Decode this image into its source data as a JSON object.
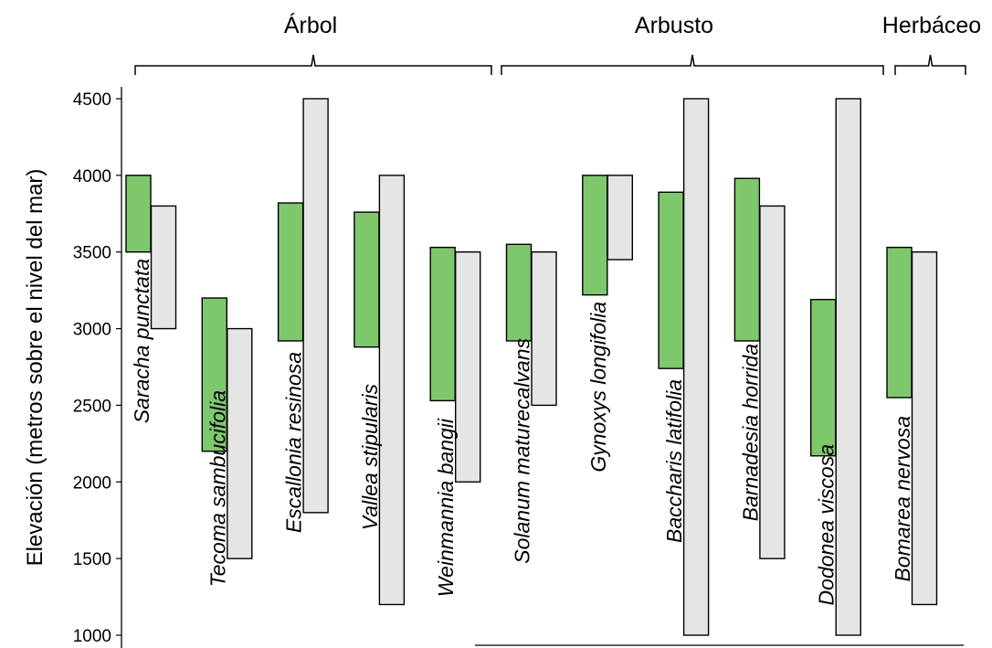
{
  "colors": {
    "green": "#7ec86c",
    "gray": "#e5e5e5",
    "stroke": "#000000"
  },
  "chart_data": {
    "type": "bar",
    "ylabel": "Elevación  (metros sobre el nivel del mar)",
    "ylim": [
      1000,
      4500
    ],
    "yticks": [
      1000,
      1500,
      2000,
      2500,
      3000,
      3500,
      4000,
      4500
    ],
    "grid": false,
    "groups": [
      {
        "label": "Árbol",
        "species_range": [
          0,
          4
        ]
      },
      {
        "label": "Arbusto",
        "species_range": [
          5,
          9
        ]
      },
      {
        "label": "Herbáceo",
        "species_range": [
          10,
          10
        ]
      }
    ],
    "species": [
      {
        "name": "Saracha punctata",
        "green": [
          3500,
          4000
        ],
        "gray": [
          3000,
          3800
        ]
      },
      {
        "name": "Tecoma sambucifolia",
        "green": [
          2200,
          3200
        ],
        "gray": [
          1500,
          3000
        ]
      },
      {
        "name": "Escallonia resinosa",
        "green": [
          2920,
          3820
        ],
        "gray": [
          1800,
          4500
        ]
      },
      {
        "name": "Vallea stipularis",
        "green": [
          2880,
          3760
        ],
        "gray": [
          1200,
          4000
        ]
      },
      {
        "name": "Weinmannia bangii",
        "green": [
          2530,
          3530
        ],
        "gray": [
          2000,
          3500
        ]
      },
      {
        "name": "Solanum maturecalvans",
        "green": [
          2920,
          3550
        ],
        "gray": [
          2500,
          3500
        ]
      },
      {
        "name": "Gynoxys longifolia",
        "green": [
          3220,
          4000
        ],
        "gray": [
          3450,
          4000
        ]
      },
      {
        "name": "Baccharis latifolia",
        "green": [
          2740,
          3890
        ],
        "gray": [
          1000,
          4500
        ]
      },
      {
        "name": "Barnadesia horrida",
        "green": [
          2920,
          3980
        ],
        "gray": [
          1500,
          3800
        ]
      },
      {
        "name": "Dodonea viscosa",
        "green": [
          2170,
          3190
        ],
        "gray": [
          1000,
          4500
        ]
      },
      {
        "name": "Bomarea nervosa",
        "green": [
          2550,
          3530
        ],
        "gray": [
          1200,
          3500
        ]
      }
    ]
  }
}
